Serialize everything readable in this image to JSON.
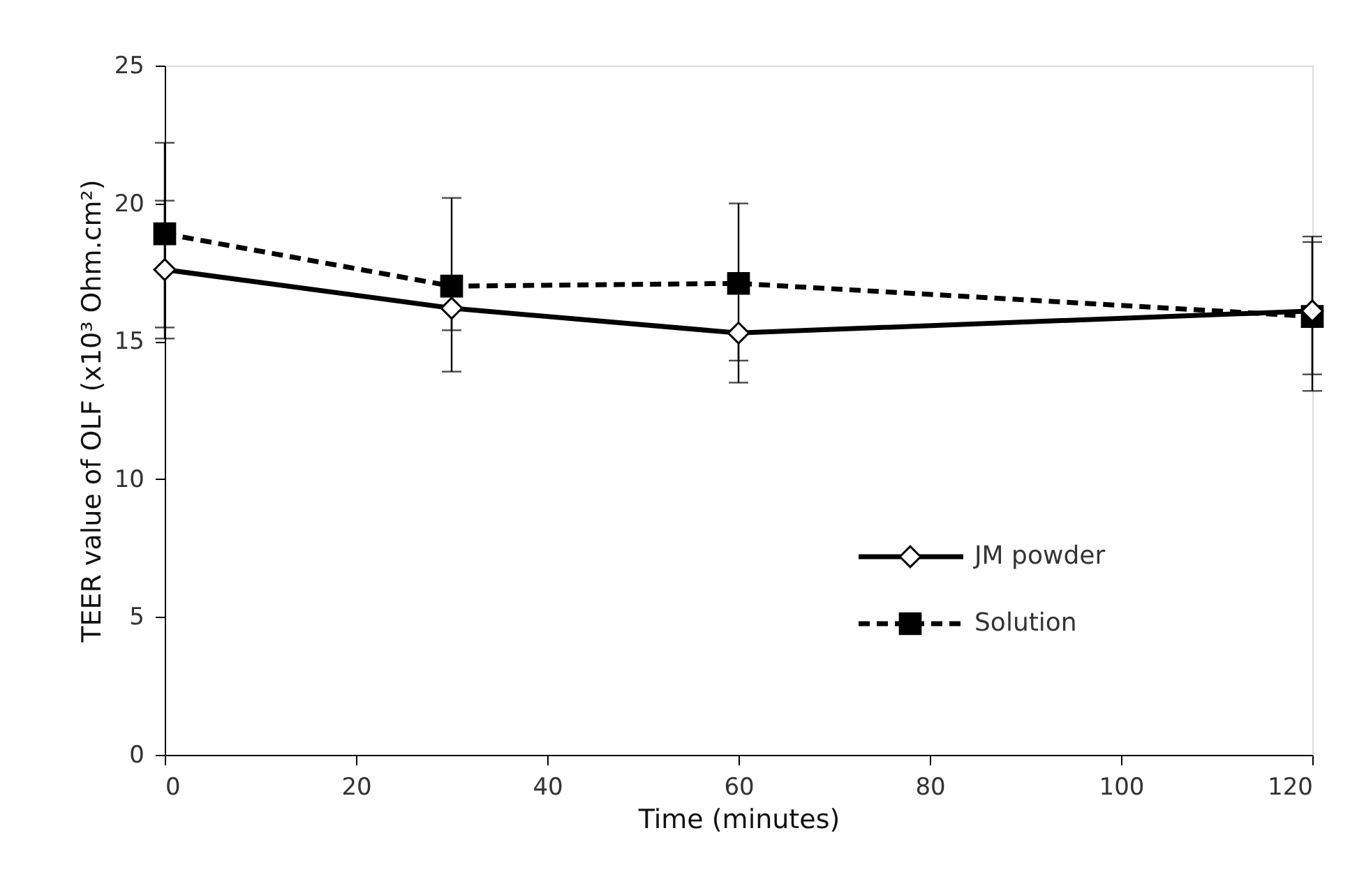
{
  "chart_data": {
    "type": "line",
    "xlabel": "Time (minutes)",
    "ylabel": "TEER value of OLF (x10³ Ohm.cm²)",
    "x": [
      0,
      30,
      60,
      120
    ],
    "series": [
      {
        "name": "JM powder",
        "color": "#000000",
        "marker": "diamond",
        "line_style": "solid",
        "values": [
          17.6,
          16.2,
          15.3,
          16.1
        ],
        "errors": [
          [
            15.1,
            22.2
          ],
          [
            13.9,
            16.2
          ],
          [
            13.5,
            15.3
          ],
          [
            13.8,
            18.8
          ]
        ]
      },
      {
        "name": "Solution",
        "color": "#000000",
        "marker": "square",
        "line_style": "dashed",
        "values": [
          18.9,
          17.0,
          17.1,
          15.9
        ],
        "errors": [
          [
            15.5,
            20.1
          ],
          [
            15.4,
            20.2
          ],
          [
            14.3,
            20.0
          ],
          [
            13.2,
            18.6
          ]
        ]
      }
    ],
    "xlim": [
      0,
      120
    ],
    "xticks": [
      0,
      20,
      40,
      60,
      80,
      100,
      120
    ],
    "ylim": [
      0,
      25
    ],
    "yticks": [
      0,
      5,
      10,
      15,
      20,
      25
    ],
    "grid": false,
    "legend": "bottom right"
  }
}
